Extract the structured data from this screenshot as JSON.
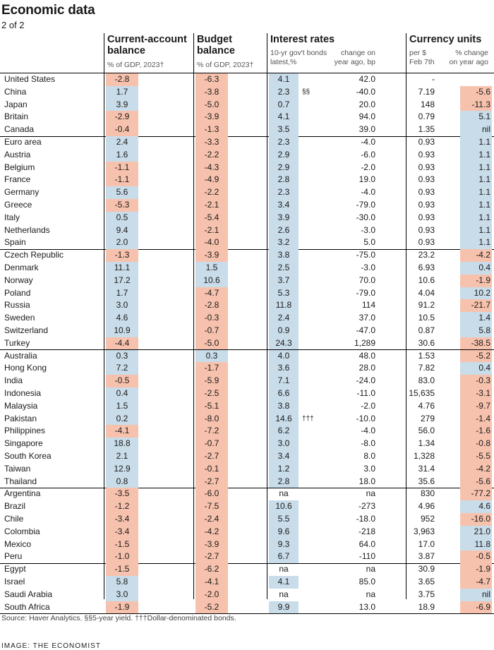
{
  "header": {
    "title": "Economic data",
    "subtitle": "2 of 2"
  },
  "columns": {
    "ca": {
      "title1": "Current-account",
      "title2": "balance",
      "sub": "% of GDP, 2023†"
    },
    "bb": {
      "title1": "Budget",
      "title2": "balance",
      "sub": "% of GDP, 2023†"
    },
    "ir": {
      "title": "Interest rates",
      "sub1a": "10-yr gov't bonds",
      "sub1b": "latest,%",
      "sub2a": "change on",
      "sub2b": "year ago, bp"
    },
    "cu": {
      "title": "Currency units",
      "sub1a": "per $",
      "sub1b": "Feb 7th",
      "sub2a": "% change",
      "sub2b": "on year ago"
    }
  },
  "colors": {
    "positive": "#c9dce9",
    "negative": "#f7c2ad",
    "separator": "#000000"
  },
  "chart_data": {
    "type": "table",
    "columns": [
      "Current-account balance",
      "Budget balance",
      "Interest rates latest",
      "Interest rates change",
      "Currency per $",
      "Currency % change"
    ],
    "rows": [
      {
        "country": "United States",
        "ca": "-2.8",
        "bb": "-6.3",
        "ir": "4.1",
        "irc": "42.0",
        "cur": "-",
        "curc": ""
      },
      {
        "country": "China",
        "ca": "1.7",
        "bb": "-3.8",
        "ir": "2.3",
        "note": "§§",
        "irc": "-40.0",
        "cur": "7.19",
        "curc": "-5.6"
      },
      {
        "country": "Japan",
        "ca": "3.9",
        "bb": "-5.0",
        "ir": "0.7",
        "irc": "20.0",
        "cur": "148",
        "curc": "-11.3"
      },
      {
        "country": "Britain",
        "ca": "-2.9",
        "bb": "-3.9",
        "ir": "4.1",
        "irc": "94.0",
        "cur": "0.79",
        "curc": "5.1"
      },
      {
        "country": "Canada",
        "ca": "-0.4",
        "bb": "-1.3",
        "ir": "3.5",
        "irc": "39.0",
        "cur": "1.35",
        "curc": "nil"
      },
      {
        "country": "Euro area",
        "ca": "2.4",
        "bb": "-3.3",
        "ir": "2.3",
        "irc": "-4.0",
        "cur": "0.93",
        "curc": "1.1"
      },
      {
        "country": "Austria",
        "ca": "1.6",
        "bb": "-2.2",
        "ir": "2.9",
        "irc": "-6.0",
        "cur": "0.93",
        "curc": "1.1"
      },
      {
        "country": "Belgium",
        "ca": "-1.1",
        "bb": "-4.3",
        "ir": "2.9",
        "irc": "-2.0",
        "cur": "0.93",
        "curc": "1.1"
      },
      {
        "country": "France",
        "ca": "-1.1",
        "bb": "-4.9",
        "ir": "2.8",
        "irc": "19.0",
        "cur": "0.93",
        "curc": "1.1"
      },
      {
        "country": "Germany",
        "ca": "5.6",
        "bb": "-2.2",
        "ir": "2.3",
        "irc": "-4.0",
        "cur": "0.93",
        "curc": "1.1"
      },
      {
        "country": "Greece",
        "ca": "-5.3",
        "bb": "-2.1",
        "ir": "3.4",
        "irc": "-79.0",
        "cur": "0.93",
        "curc": "1.1"
      },
      {
        "country": "Italy",
        "ca": "0.5",
        "bb": "-5.4",
        "ir": "3.9",
        "irc": "-30.0",
        "cur": "0.93",
        "curc": "1.1"
      },
      {
        "country": "Netherlands",
        "ca": "9.4",
        "bb": "-2.1",
        "ir": "2.6",
        "irc": "-3.0",
        "cur": "0.93",
        "curc": "1.1"
      },
      {
        "country": "Spain",
        "ca": "2.0",
        "bb": "-4.0",
        "ir": "3.2",
        "irc": "5.0",
        "cur": "0.93",
        "curc": "1.1"
      },
      {
        "country": "Czech Republic",
        "ca": "-1.3",
        "bb": "-3.9",
        "ir": "3.8",
        "irc": "-75.0",
        "cur": "23.2",
        "curc": "-4.2"
      },
      {
        "country": "Denmark",
        "ca": "11.1",
        "bb": "1.5",
        "ir": "2.5",
        "irc": "-3.0",
        "cur": "6.93",
        "curc": "0.4"
      },
      {
        "country": "Norway",
        "ca": "17.2",
        "bb": "10.6",
        "ir": "3.7",
        "irc": "70.0",
        "cur": "10.6",
        "curc": "-1.9"
      },
      {
        "country": "Poland",
        "ca": "1.7",
        "bb": "-4.7",
        "ir": "5.3",
        "irc": "-79.0",
        "cur": "4.04",
        "curc": "10.2"
      },
      {
        "country": "Russia",
        "ca": "3.0",
        "bb": "-2.8",
        "ir": "11.8",
        "irc": "114",
        "cur": "91.2",
        "curc": "-21.7"
      },
      {
        "country": "Sweden",
        "ca": "4.6",
        "bb": "-0.3",
        "ir": "2.4",
        "irc": "37.0",
        "cur": "10.5",
        "curc": "1.4"
      },
      {
        "country": "Switzerland",
        "ca": "10.9",
        "bb": "-0.7",
        "ir": "0.9",
        "irc": "-47.0",
        "cur": "0.87",
        "curc": "5.8"
      },
      {
        "country": "Turkey",
        "ca": "-4.4",
        "bb": "-5.0",
        "ir": "24.3",
        "irc": "1,289",
        "cur": "30.6",
        "curc": "-38.5"
      },
      {
        "country": "Australia",
        "ca": "0.3",
        "bb": "0.3",
        "ir": "4.0",
        "irc": "48.0",
        "cur": "1.53",
        "curc": "-5.2"
      },
      {
        "country": "Hong Kong",
        "ca": "7.2",
        "bb": "-1.7",
        "ir": "3.6",
        "irc": "28.0",
        "cur": "7.82",
        "curc": "0.4"
      },
      {
        "country": "India",
        "ca": "-0.5",
        "bb": "-5.9",
        "ir": "7.1",
        "irc": "-24.0",
        "cur": "83.0",
        "curc": "-0.3"
      },
      {
        "country": "Indonesia",
        "ca": "0.4",
        "bb": "-2.5",
        "ir": "6.6",
        "irc": "-11.0",
        "cur": "15,635",
        "curc": "-3.1"
      },
      {
        "country": "Malaysia",
        "ca": "1.5",
        "bb": "-5.1",
        "ir": "3.8",
        "irc": "-2.0",
        "cur": "4.76",
        "curc": "-9.7"
      },
      {
        "country": "Pakistan",
        "ca": "0.2",
        "bb": "-8.0",
        "ir": "14.6",
        "note": "†††",
        "irc": "-10.0",
        "cur": "279",
        "curc": "-1.4"
      },
      {
        "country": "Philippines",
        "ca": "-4.1",
        "bb": "-7.2",
        "ir": "6.2",
        "irc": "-4.0",
        "cur": "56.0",
        "curc": "-1.6"
      },
      {
        "country": "Singapore",
        "ca": "18.8",
        "bb": "-0.7",
        "ir": "3.0",
        "irc": "-8.0",
        "cur": "1.34",
        "curc": "-0.8"
      },
      {
        "country": "South Korea",
        "ca": "2.1",
        "bb": "-2.7",
        "ir": "3.4",
        "irc": "8.0",
        "cur": "1,328",
        "curc": "-5.5"
      },
      {
        "country": "Taiwan",
        "ca": "12.9",
        "bb": "-0.1",
        "ir": "1.2",
        "irc": "3.0",
        "cur": "31.4",
        "curc": "-4.2"
      },
      {
        "country": "Thailand",
        "ca": "0.8",
        "bb": "-2.7",
        "ir": "2.8",
        "irc": "18.0",
        "cur": "35.6",
        "curc": "-5.6"
      },
      {
        "country": "Argentina",
        "ca": "-3.5",
        "bb": "-6.0",
        "ir": "na",
        "irc": "na",
        "cur": "830",
        "curc": "-77.2"
      },
      {
        "country": "Brazil",
        "ca": "-1.2",
        "bb": "-7.5",
        "ir": "10.6",
        "irc": "-273",
        "cur": "4.96",
        "curc": "4.6"
      },
      {
        "country": "Chile",
        "ca": "-3.4",
        "bb": "-2.4",
        "ir": "5.5",
        "irc": "-18.0",
        "cur": "952",
        "curc": "-16.0"
      },
      {
        "country": "Colombia",
        "ca": "-3.4",
        "bb": "-4.2",
        "ir": "9.6",
        "irc": "-218",
        "cur": "3,963",
        "curc": "21.0"
      },
      {
        "country": "Mexico",
        "ca": "-1.5",
        "bb": "-3.9",
        "ir": "9.3",
        "irc": "64.0",
        "cur": "17.0",
        "curc": "11.8"
      },
      {
        "country": "Peru",
        "ca": "-1.0",
        "bb": "-2.7",
        "ir": "6.7",
        "irc": "-110",
        "cur": "3.87",
        "curc": "-0.5"
      },
      {
        "country": "Egypt",
        "ca": "-1.5",
        "bb": "-6.2",
        "ir": "na",
        "irc": "na",
        "cur": "30.9",
        "curc": "-1.9"
      },
      {
        "country": "Israel",
        "ca": "5.8",
        "bb": "-4.1",
        "ir": "4.1",
        "irc": "85.0",
        "cur": "3.65",
        "curc": "-4.7"
      },
      {
        "country": "Saudi Arabia",
        "ca": "3.0",
        "bb": "-2.0",
        "ir": "na",
        "irc": "na",
        "cur": "3.75",
        "curc": "nil"
      },
      {
        "country": "South Africa",
        "ca": "-1.9",
        "bb": "-5.2",
        "ir": "9.9",
        "irc": "13.0",
        "cur": "18.9",
        "curc": "-6.9"
      }
    ]
  },
  "footnote": "Source: Haver Analytics.  §§5-year yield.  †††Dollar-denominated bonds.",
  "credit": "IMAGE: THE ECONOMIST"
}
